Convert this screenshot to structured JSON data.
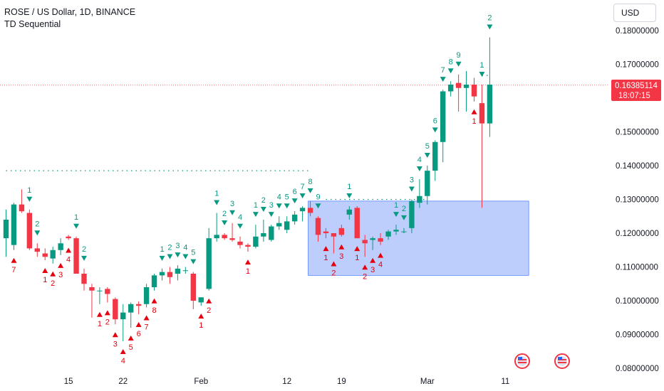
{
  "header": {
    "title": "ROSE / US Dollar, 1D, BINANCE",
    "indicator": "TD Sequential",
    "currency": "USD"
  },
  "price_label": {
    "price": "0.16385114",
    "countdown": "18:07:15"
  },
  "colors": {
    "up": "#089981",
    "down": "#f23645",
    "setup_up": "#089981",
    "setup_down": "#e4000e",
    "zone": "#b3c6fb",
    "zone_border": "#2962ff",
    "price_line": "#f23645"
  },
  "chart_data": {
    "type": "candlestick",
    "title": "ROSE / US Dollar, 1D, BINANCE",
    "ylim": [
      0.0785,
      0.1855
    ],
    "y_ticks": [
      "0.18000000",
      "0.17000000",
      "0.16000000",
      "0.15000000",
      "0.14000000",
      "0.13000000",
      "0.12000000",
      "0.11000000",
      "0.10000000",
      "0.09000000",
      "0.08000000"
    ],
    "y_tick_values": [
      0.18,
      0.17,
      0.16,
      0.15,
      0.14,
      0.13,
      0.12,
      0.11,
      0.1,
      0.09,
      0.08
    ],
    "x_ticks": [
      {
        "label": "15",
        "index": 8
      },
      {
        "label": "22",
        "index": 15
      },
      {
        "label": "Feb",
        "index": 25
      },
      {
        "label": "12",
        "index": 36
      },
      {
        "label": "19",
        "index": 43
      },
      {
        "label": "Mar",
        "index": 54
      },
      {
        "label": "11",
        "index": 64
      }
    ],
    "candles": [
      {
        "o": 0.1185,
        "h": 0.127,
        "l": 0.113,
        "c": 0.124
      },
      {
        "o": 0.1165,
        "h": 0.129,
        "l": 0.115,
        "c": 0.1285
      },
      {
        "o": 0.1285,
        "h": 0.133,
        "l": 0.126,
        "c": 0.1265
      },
      {
        "o": 0.126,
        "h": 0.127,
        "l": 0.115,
        "c": 0.1155
      },
      {
        "o": 0.1155,
        "h": 0.117,
        "l": 0.113,
        "c": 0.1145
      },
      {
        "o": 0.114,
        "h": 0.1155,
        "l": 0.112,
        "c": 0.113
      },
      {
        "o": 0.1125,
        "h": 0.116,
        "l": 0.111,
        "c": 0.115
      },
      {
        "o": 0.115,
        "h": 0.1185,
        "l": 0.1135,
        "c": 0.117
      },
      {
        "o": 0.119,
        "h": 0.1195,
        "l": 0.118,
        "c": 0.1185
      },
      {
        "o": 0.1185,
        "h": 0.119,
        "l": 0.108,
        "c": 0.108
      },
      {
        "o": 0.108,
        "h": 0.1095,
        "l": 0.103,
        "c": 0.105
      },
      {
        "o": 0.104,
        "h": 0.105,
        "l": 0.095,
        "c": 0.103
      },
      {
        "o": 0.103,
        "h": 0.104,
        "l": 0.099,
        "c": 0.103
      },
      {
        "o": 0.1035,
        "h": 0.104,
        "l": 0.0995,
        "c": 0.102
      },
      {
        "o": 0.1005,
        "h": 0.101,
        "l": 0.093,
        "c": 0.0945
      },
      {
        "o": 0.0945,
        "h": 0.099,
        "l": 0.088,
        "c": 0.0965
      },
      {
        "o": 0.0965,
        "h": 0.0995,
        "l": 0.092,
        "c": 0.099
      },
      {
        "o": 0.099,
        "h": 0.0998,
        "l": 0.096,
        "c": 0.0985
      },
      {
        "o": 0.099,
        "h": 0.105,
        "l": 0.098,
        "c": 0.104
      },
      {
        "o": 0.104,
        "h": 0.108,
        "l": 0.103,
        "c": 0.1075
      },
      {
        "o": 0.1075,
        "h": 0.1095,
        "l": 0.106,
        "c": 0.1085
      },
      {
        "o": 0.1085,
        "h": 0.11,
        "l": 0.105,
        "c": 0.107
      },
      {
        "o": 0.108,
        "h": 0.1105,
        "l": 0.106,
        "c": 0.1095
      },
      {
        "o": 0.109,
        "h": 0.11,
        "l": 0.108,
        "c": 0.109
      },
      {
        "o": 0.108,
        "h": 0.1085,
        "l": 0.0975,
        "c": 0.1
      },
      {
        "o": 0.0995,
        "h": 0.101,
        "l": 0.0985,
        "c": 0.101
      },
      {
        "o": 0.1035,
        "h": 0.1215,
        "l": 0.103,
        "c": 0.1185
      },
      {
        "o": 0.1185,
        "h": 0.126,
        "l": 0.1175,
        "c": 0.1195
      },
      {
        "o": 0.1195,
        "h": 0.12,
        "l": 0.118,
        "c": 0.1185
      },
      {
        "o": 0.1185,
        "h": 0.123,
        "l": 0.1175,
        "c": 0.118
      },
      {
        "o": 0.1175,
        "h": 0.119,
        "l": 0.1155,
        "c": 0.1165
      },
      {
        "o": 0.1165,
        "h": 0.117,
        "l": 0.1145,
        "c": 0.116
      },
      {
        "o": 0.116,
        "h": 0.1225,
        "l": 0.1155,
        "c": 0.119
      },
      {
        "o": 0.119,
        "h": 0.124,
        "l": 0.1175,
        "c": 0.12
      },
      {
        "o": 0.118,
        "h": 0.1225,
        "l": 0.1175,
        "c": 0.122
      },
      {
        "o": 0.122,
        "h": 0.125,
        "l": 0.121,
        "c": 0.123
      },
      {
        "o": 0.121,
        "h": 0.125,
        "l": 0.12,
        "c": 0.1235
      },
      {
        "o": 0.1235,
        "h": 0.1265,
        "l": 0.1225,
        "c": 0.1255
      },
      {
        "o": 0.1265,
        "h": 0.128,
        "l": 0.1235,
        "c": 0.1275
      },
      {
        "o": 0.1275,
        "h": 0.1295,
        "l": 0.125,
        "c": 0.126
      },
      {
        "o": 0.1245,
        "h": 0.125,
        "l": 0.1175,
        "c": 0.1195
      },
      {
        "o": 0.1205,
        "h": 0.1215,
        "l": 0.1185,
        "c": 0.12
      },
      {
        "o": 0.12,
        "h": 0.12,
        "l": 0.114,
        "c": 0.119
      },
      {
        "o": 0.1215,
        "h": 0.1225,
        "l": 0.119,
        "c": 0.1195
      },
      {
        "o": 0.1255,
        "h": 0.128,
        "l": 0.124,
        "c": 0.127
      },
      {
        "o": 0.1275,
        "h": 0.128,
        "l": 0.1185,
        "c": 0.1185
      },
      {
        "o": 0.118,
        "h": 0.1195,
        "l": 0.113,
        "c": 0.117
      },
      {
        "o": 0.118,
        "h": 0.119,
        "l": 0.115,
        "c": 0.1185
      },
      {
        "o": 0.1185,
        "h": 0.12,
        "l": 0.1165,
        "c": 0.1175
      },
      {
        "o": 0.119,
        "h": 0.121,
        "l": 0.118,
        "c": 0.1205
      },
      {
        "o": 0.1205,
        "h": 0.1225,
        "l": 0.1195,
        "c": 0.121
      },
      {
        "o": 0.1205,
        "h": 0.1215,
        "l": 0.12,
        "c": 0.1205
      },
      {
        "o": 0.1215,
        "h": 0.13,
        "l": 0.12,
        "c": 0.1295
      },
      {
        "o": 0.129,
        "h": 0.136,
        "l": 0.1275,
        "c": 0.131
      },
      {
        "o": 0.131,
        "h": 0.14,
        "l": 0.1285,
        "c": 0.1385
      },
      {
        "o": 0.1385,
        "h": 0.1475,
        "l": 0.1355,
        "c": 0.147
      },
      {
        "o": 0.147,
        "h": 0.1625,
        "l": 0.141,
        "c": 0.162
      },
      {
        "o": 0.162,
        "h": 0.165,
        "l": 0.1605,
        "c": 0.164
      },
      {
        "o": 0.1645,
        "h": 0.167,
        "l": 0.156,
        "c": 0.163
      },
      {
        "o": 0.163,
        "h": 0.168,
        "l": 0.156,
        "c": 0.164
      },
      {
        "o": 0.164,
        "h": 0.166,
        "l": 0.159,
        "c": 0.1605
      },
      {
        "o": 0.1585,
        "h": 0.164,
        "l": 0.1275,
        "c": 0.1525
      },
      {
        "o": 0.1525,
        "h": 0.178,
        "l": 0.1485,
        "c": 0.164
      }
    ],
    "setup_counts": [
      {
        "i": 1,
        "t": "7",
        "pos": "below"
      },
      {
        "i": 3,
        "t": "1",
        "pos": "above"
      },
      {
        "i": 4,
        "t": "2",
        "pos": "above"
      },
      {
        "i": 5,
        "t": "1",
        "pos": "below"
      },
      {
        "i": 6,
        "t": "2",
        "pos": "below"
      },
      {
        "i": 7,
        "t": "3",
        "pos": "below"
      },
      {
        "i": 8,
        "t": "4",
        "pos": "below"
      },
      {
        "i": 9,
        "t": "1",
        "pos": "above"
      },
      {
        "i": 10,
        "t": "2",
        "pos": "above"
      },
      {
        "i": 12,
        "t": "1",
        "pos": "below"
      },
      {
        "i": 13,
        "t": "2",
        "pos": "below"
      },
      {
        "i": 14,
        "t": "3",
        "pos": "below"
      },
      {
        "i": 15,
        "t": "4",
        "pos": "below"
      },
      {
        "i": 16,
        "t": "5",
        "pos": "below"
      },
      {
        "i": 17,
        "t": "6",
        "pos": "below"
      },
      {
        "i": 18,
        "t": "7",
        "pos": "below"
      },
      {
        "i": 19,
        "t": "8",
        "pos": "below"
      },
      {
        "i": 20,
        "t": "1",
        "pos": "above"
      },
      {
        "i": 21,
        "t": "2",
        "pos": "above"
      },
      {
        "i": 22,
        "t": "3",
        "pos": "above"
      },
      {
        "i": 23,
        "t": "4",
        "pos": "above"
      },
      {
        "i": 24,
        "t": "5",
        "pos": "above"
      },
      {
        "i": 25,
        "t": "1",
        "pos": "below"
      },
      {
        "i": 26,
        "t": "2",
        "pos": "below"
      },
      {
        "i": 27,
        "t": "1",
        "pos": "above"
      },
      {
        "i": 28,
        "t": "2",
        "pos": "above"
      },
      {
        "i": 29,
        "t": "3",
        "pos": "above"
      },
      {
        "i": 30,
        "t": "4",
        "pos": "above"
      },
      {
        "i": 31,
        "t": "1",
        "pos": "below"
      },
      {
        "i": 32,
        "t": "1",
        "pos": "above"
      },
      {
        "i": 33,
        "t": "2",
        "pos": "above"
      },
      {
        "i": 34,
        "t": "3",
        "pos": "above"
      },
      {
        "i": 35,
        "t": "4",
        "pos": "above"
      },
      {
        "i": 36,
        "t": "5",
        "pos": "above"
      },
      {
        "i": 37,
        "t": "6",
        "pos": "above"
      },
      {
        "i": 38,
        "t": "7",
        "pos": "above"
      },
      {
        "i": 39,
        "t": "8",
        "pos": "above"
      },
      {
        "i": 40,
        "t": "9",
        "pos": "above"
      },
      {
        "i": 41,
        "t": "1",
        "pos": "below"
      },
      {
        "i": 42,
        "t": "2",
        "pos": "below"
      },
      {
        "i": 43,
        "t": "3",
        "pos": "below"
      },
      {
        "i": 44,
        "t": "1",
        "pos": "above"
      },
      {
        "i": 45,
        "t": "1",
        "pos": "below"
      },
      {
        "i": 46,
        "t": "2",
        "pos": "below"
      },
      {
        "i": 47,
        "t": "3",
        "pos": "below"
      },
      {
        "i": 48,
        "t": "4",
        "pos": "below"
      },
      {
        "i": 50,
        "t": "1",
        "pos": "above"
      },
      {
        "i": 51,
        "t": "2",
        "pos": "above"
      },
      {
        "i": 52,
        "t": "3",
        "pos": "above"
      },
      {
        "i": 53,
        "t": "4",
        "pos": "above"
      },
      {
        "i": 54,
        "t": "5",
        "pos": "above"
      },
      {
        "i": 55,
        "t": "6",
        "pos": "above"
      },
      {
        "i": 56,
        "t": "7",
        "pos": "above"
      },
      {
        "i": 57,
        "t": "8",
        "pos": "above"
      },
      {
        "i": 58,
        "t": "9",
        "pos": "above"
      },
      {
        "i": 60,
        "t": "1",
        "pos": "below"
      },
      {
        "i": 61,
        "t": "1",
        "pos": "above"
      },
      {
        "i": 62,
        "t": "2",
        "pos": "above"
      }
    ],
    "resistance_lines": [
      {
        "value": 0.1385,
        "from": 0,
        "to": 39
      },
      {
        "value": 0.13,
        "from": 41,
        "to": 54
      },
      {
        "value": 0.1667,
        "from": 61,
        "to": 62
      }
    ],
    "zone": {
      "from": 39,
      "to": 67,
      "top": 0.1295,
      "bottom": 0.1075
    },
    "current_price": 0.16385114
  }
}
